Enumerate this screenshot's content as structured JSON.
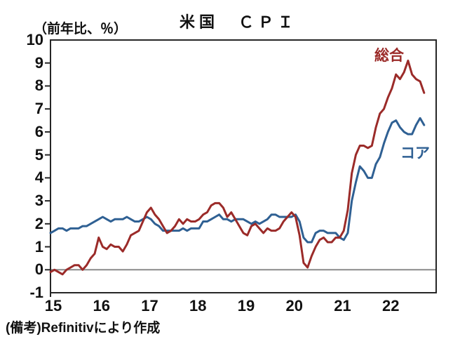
{
  "title": "米国　ＣＰＩ",
  "y_axis_unit": "（前年比、％）",
  "footer": "(備考)Refinitivにより作成",
  "colors": {
    "headline": "#9B2B29",
    "core": "#2F6093",
    "zero_line": "#8A8A8A",
    "axis": "#262626",
    "text": "#111111"
  },
  "chart_data": {
    "type": "line",
    "title": "米国 CPI",
    "ylabel": "前年比、%",
    "ylim": [
      -1,
      10
    ],
    "yticks": [
      10,
      9,
      8,
      7,
      6,
      5,
      4,
      3,
      2,
      1,
      0,
      -1
    ],
    "xticks": [
      "15",
      "16",
      "17",
      "18",
      "19",
      "20",
      "21",
      "22"
    ],
    "x_axis": {
      "unit": "month",
      "first": "2015-01",
      "last": "2022-10",
      "axis_span_months": 96
    },
    "grid": false,
    "zero_baseline": true,
    "legend_position": "inline-labels",
    "series": [
      {
        "name": "総合",
        "color": "#9B2B29",
        "values": [
          -0.1,
          0.0,
          -0.1,
          -0.2,
          0.0,
          0.1,
          0.2,
          0.2,
          0.0,
          0.2,
          0.5,
          0.7,
          1.4,
          1.0,
          0.9,
          1.1,
          1.0,
          1.0,
          0.8,
          1.1,
          1.5,
          1.6,
          1.7,
          2.1,
          2.5,
          2.7,
          2.4,
          2.2,
          1.9,
          1.6,
          1.7,
          1.9,
          2.2,
          2.0,
          2.2,
          2.1,
          2.1,
          2.2,
          2.4,
          2.5,
          2.8,
          2.9,
          2.9,
          2.7,
          2.3,
          2.5,
          2.2,
          1.9,
          1.6,
          1.5,
          1.9,
          2.0,
          1.8,
          1.6,
          1.8,
          1.7,
          1.7,
          1.8,
          2.1,
          2.3,
          2.5,
          2.3,
          1.5,
          0.3,
          0.1,
          0.6,
          1.0,
          1.3,
          1.4,
          1.2,
          1.2,
          1.4,
          1.4,
          1.7,
          2.6,
          4.2,
          5.0,
          5.4,
          5.4,
          5.3,
          5.4,
          6.2,
          6.8,
          7.0,
          7.5,
          7.9,
          8.5,
          8.3,
          8.6,
          9.1,
          8.5,
          8.3,
          8.2,
          7.7
        ]
      },
      {
        "name": "コア",
        "color": "#2F6093",
        "values": [
          1.6,
          1.7,
          1.8,
          1.8,
          1.7,
          1.8,
          1.8,
          1.8,
          1.9,
          1.9,
          2.0,
          2.1,
          2.2,
          2.3,
          2.2,
          2.1,
          2.2,
          2.2,
          2.2,
          2.3,
          2.2,
          2.1,
          2.1,
          2.2,
          2.3,
          2.2,
          2.0,
          1.9,
          1.7,
          1.7,
          1.7,
          1.7,
          1.7,
          1.8,
          1.7,
          1.8,
          1.8,
          1.8,
          2.1,
          2.1,
          2.2,
          2.3,
          2.4,
          2.2,
          2.2,
          2.1,
          2.2,
          2.2,
          2.2,
          2.1,
          2.0,
          2.1,
          2.0,
          2.1,
          2.2,
          2.4,
          2.4,
          2.3,
          2.3,
          2.3,
          2.3,
          2.4,
          2.1,
          1.4,
          1.2,
          1.2,
          1.6,
          1.7,
          1.7,
          1.6,
          1.6,
          1.6,
          1.4,
          1.3,
          1.6,
          3.0,
          3.8,
          4.5,
          4.3,
          4.0,
          4.0,
          4.6,
          4.9,
          5.5,
          6.0,
          6.4,
          6.5,
          6.2,
          6.0,
          5.9,
          5.9,
          6.3,
          6.6,
          6.3
        ]
      }
    ]
  }
}
